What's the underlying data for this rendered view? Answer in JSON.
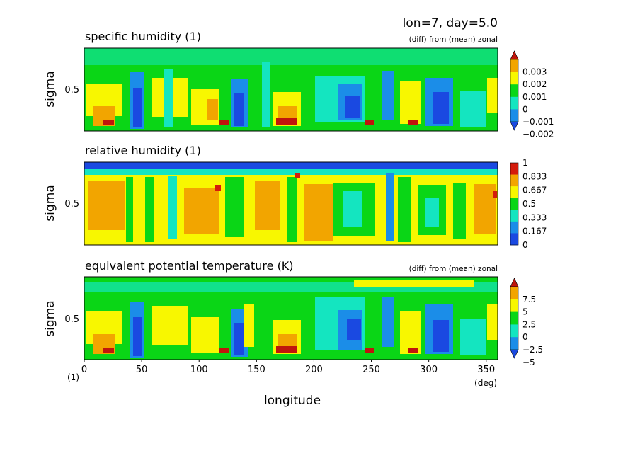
{
  "header": {
    "run_info": "lon=7, day=5.0"
  },
  "chart_data": [
    {
      "type": "heatmap",
      "title": "specific humidity (1)",
      "note": "(diff) from (mean) zonal",
      "ylabel": "sigma",
      "y_tick_labels": [
        "0.5"
      ],
      "xlim": [
        0,
        360
      ],
      "ylim": [
        1,
        0
      ],
      "colorbar": {
        "labels": [
          "0.003",
          "0.002",
          "0.001",
          "0",
          "−0.001",
          "−0.002"
        ],
        "colors": [
          "#c0150c",
          "#f2a500",
          "#f8f700",
          "#0ad616",
          "#14e5c0",
          "#1b8de8",
          "#1a49e1"
        ]
      }
    },
    {
      "type": "heatmap",
      "title": "relative humidity (1)",
      "ylabel": "sigma",
      "y_tick_labels": [
        "0.5"
      ],
      "xlim": [
        0,
        360
      ],
      "ylim": [
        1,
        0
      ],
      "colorbar": {
        "labels": [
          "1",
          "0.833",
          "0.667",
          "0.5",
          "0.333",
          "0.167",
          "0"
        ],
        "colors": [
          "#d41b0c",
          "#f2a500",
          "#f8f700",
          "#0ad616",
          "#14e5c0",
          "#1b8de8",
          "#1a49e1"
        ]
      }
    },
    {
      "type": "heatmap",
      "title": "equivalent potential temperature (K)",
      "note": "(diff) from (mean) zonal",
      "ylabel": "sigma",
      "y_tick_labels": [
        "0.5"
      ],
      "xlim": [
        0,
        360
      ],
      "ylim": [
        1,
        0
      ],
      "x_tick_labels": [
        "0",
        "50",
        "100",
        "150",
        "200",
        "250",
        "300",
        "350"
      ],
      "xlabel": "longitude",
      "x_unit": "(deg)",
      "y_unit": "(1)",
      "colorbar": {
        "labels": [
          "7.5",
          "5",
          "2.5",
          "0",
          "−2.5",
          "−5"
        ],
        "colors": [
          "#c0150c",
          "#f2a500",
          "#f8f700",
          "#0ad616",
          "#14e5c0",
          "#1b8de8",
          "#1a49e1"
        ]
      }
    }
  ]
}
